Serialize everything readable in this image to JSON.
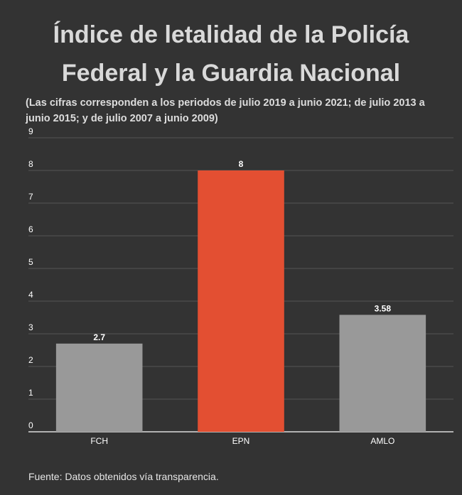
{
  "header": {
    "title_line1": "Índice de letalidad de la Policía",
    "title_line2": "Federal y la Guardia Nacional",
    "subtitle": "(Las cifras corresponden a los periodos de julio 2019 a junio 2021; de julio 2013 a junio 2015; y de julio 2007 a junio 2009)"
  },
  "footer": {
    "source": "Fuente: Datos obtenidos vía transparencia."
  },
  "colors": {
    "background": "#333333",
    "bar_default": "#999999",
    "bar_highlight": "#e34f32",
    "grid": "#555555",
    "text": "#ffffff"
  },
  "chart_data": {
    "type": "bar",
    "categories": [
      "FCH",
      "EPN",
      "AMLO"
    ],
    "values": [
      2.7,
      8,
      3.58
    ],
    "value_labels": [
      "2.7",
      "8",
      "3.58"
    ],
    "highlight": [
      "EPN"
    ],
    "yticks": [
      "0",
      "1",
      "2",
      "3",
      "4",
      "5",
      "6",
      "7",
      "8",
      "9"
    ],
    "ylim": [
      0,
      9
    ],
    "grid": true,
    "legend": "none"
  }
}
